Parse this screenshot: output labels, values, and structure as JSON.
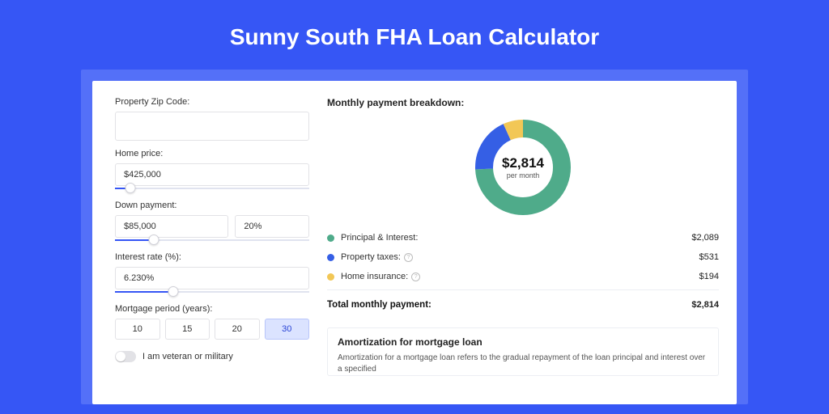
{
  "title": "Sunny South FHA Loan Calculator",
  "colors": {
    "page_bg": "#3656f5",
    "outer_card_bg": "#5470f8",
    "card_bg": "#ffffff",
    "slider_fill": "#3656f5",
    "period_active_bg": "#dbe3ff"
  },
  "form": {
    "zip": {
      "label": "Property Zip Code:",
      "value": ""
    },
    "home_price": {
      "label": "Home price:",
      "value": "$425,000",
      "slider_pct": 8
    },
    "down_payment": {
      "label": "Down payment:",
      "amount": "$85,000",
      "percent": "20%",
      "slider_pct": 20
    },
    "interest": {
      "label": "Interest rate (%):",
      "value": "6.230%",
      "slider_pct": 30
    },
    "period": {
      "label": "Mortgage period (years):",
      "options": [
        "10",
        "15",
        "20",
        "30"
      ],
      "active_index": 3
    },
    "veteran": {
      "label": "I am veteran or military",
      "checked": false
    }
  },
  "breakdown": {
    "heading": "Monthly payment breakdown:",
    "donut": {
      "type": "donut",
      "amount": "$2,814",
      "sub": "per month",
      "radius": 48,
      "stroke": 22,
      "slices": [
        {
          "key": "pi",
          "fraction": 0.742,
          "color": "#4fab8a"
        },
        {
          "key": "tax",
          "fraction": 0.189,
          "color": "#355fe5"
        },
        {
          "key": "ins",
          "fraction": 0.069,
          "color": "#f2c756"
        }
      ]
    },
    "rows": [
      {
        "dot": "#4fab8a",
        "label": "Principal & Interest:",
        "info": false,
        "value": "$2,089"
      },
      {
        "dot": "#355fe5",
        "label": "Property taxes:",
        "info": true,
        "value": "$531"
      },
      {
        "dot": "#f2c756",
        "label": "Home insurance:",
        "info": true,
        "value": "$194"
      }
    ],
    "total": {
      "label": "Total monthly payment:",
      "value": "$2,814"
    }
  },
  "amort": {
    "heading": "Amortization for mortgage loan",
    "text": "Amortization for a mortgage loan refers to the gradual repayment of the loan principal and interest over a specified"
  }
}
